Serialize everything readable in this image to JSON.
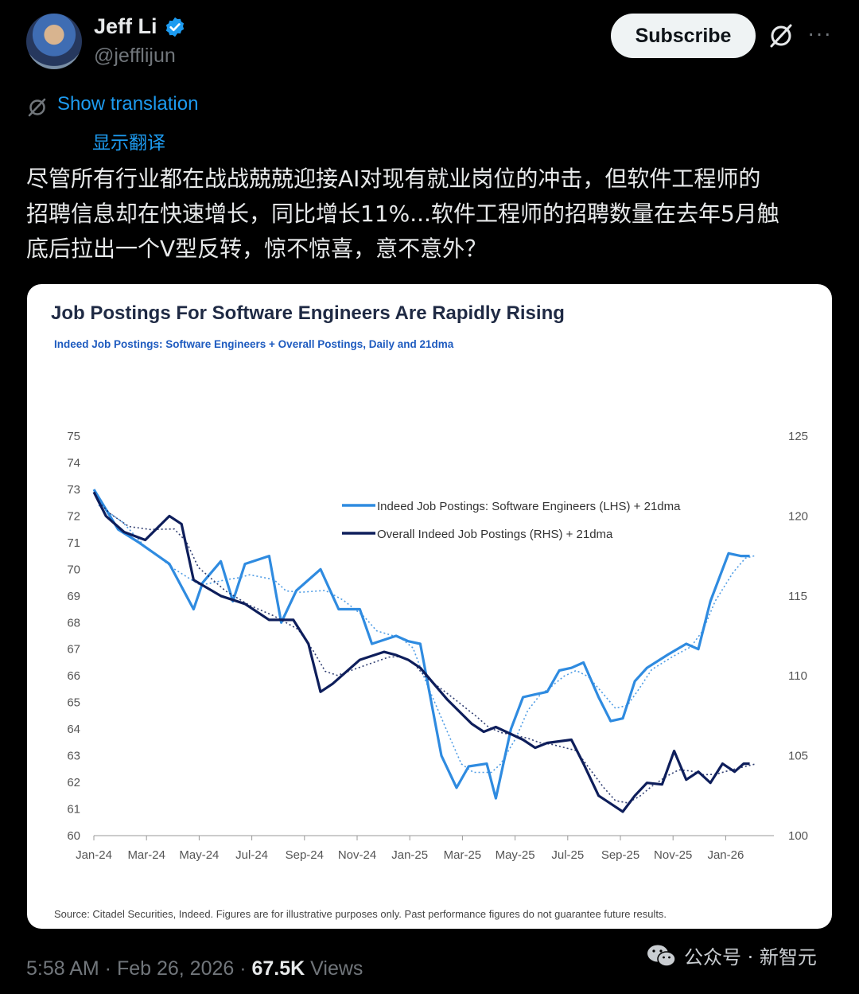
{
  "author": {
    "name": "Jeff Li",
    "handle": "@jefflijun"
  },
  "actions": {
    "subscribe_label": "Subscribe"
  },
  "translation": {
    "link": "Show translation",
    "translated_label": "显示翻译"
  },
  "tweet": {
    "text": "尽管所有行业都在战战兢兢迎接AI对现有就业岗位的冲击，但软件工程师的\n招聘信息却在快速增长，同比增长11%...软件工程师的招聘数量在去年5月触\n底后拉出一个V型反转，惊不惊喜，意不意外？"
  },
  "chart_data": {
    "type": "line",
    "title": "Job Postings For Software Engineers Are Rapidly Rising",
    "subtitle": "Indeed Job Postings: Software Engineers + Overall Postings, Daily and 21dma",
    "source": "Source: Citadel Securities, Indeed. Figures are for illustrative purposes only. Past performance figures do not guarantee future results.",
    "x_tick_labels": [
      "Jan-24",
      "Mar-24",
      "May-24",
      "Jul-24",
      "Sep-24",
      "Nov-24",
      "Jan-25",
      "Mar-25",
      "May-25",
      "Jul-25",
      "Sep-25",
      "Nov-25",
      "Jan-26"
    ],
    "y_left_ticks": [
      60,
      61,
      62,
      63,
      64,
      65,
      66,
      67,
      68,
      69,
      70,
      71,
      72,
      73,
      74,
      75
    ],
    "y_right_ticks": [
      100,
      105,
      110,
      115,
      120,
      125
    ],
    "ylim_left": [
      60,
      75
    ],
    "ylim_right": [
      100,
      125
    ],
    "xlim": [
      "2024-01",
      "2026-02"
    ],
    "legend": {
      "placement": "top-center",
      "entries": [
        "Indeed Job Postings: Software Engineers (LHS) + 21dma",
        "Overall Indeed Job Postings (RHS) + 21dma"
      ]
    },
    "colors": {
      "software": "#2f8be0",
      "overall": "#0e1e5b",
      "title": "#1f2a44",
      "subtitle": "#1e5bbf"
    },
    "series": [
      {
        "name": "Indeed Job Postings: Software Engineers (LHS) + 21dma",
        "axis": "left",
        "x": [
          2024.0,
          2024.08,
          2024.15,
          2024.25,
          2024.33,
          2024.36,
          2024.42,
          2024.46,
          2024.5,
          2024.58,
          2024.62,
          2024.67,
          2024.75,
          2024.81,
          2024.88,
          2024.92,
          2025.0,
          2025.04,
          2025.08,
          2025.15,
          2025.2,
          2025.24,
          2025.3,
          2025.33,
          2025.38,
          2025.42,
          2025.46,
          2025.5,
          2025.54,
          2025.58,
          2025.62,
          2025.67,
          2025.71,
          2025.75,
          2025.79,
          2025.83,
          2025.9,
          2025.96,
          2026.0,
          2026.04,
          2026.1,
          2026.14,
          2026.17
        ],
        "y": [
          73.0,
          71.5,
          71.0,
          70.2,
          68.5,
          69.5,
          70.3,
          68.8,
          70.2,
          70.5,
          68.0,
          69.2,
          70.0,
          68.5,
          68.5,
          67.2,
          67.5,
          67.3,
          67.2,
          63.0,
          61.8,
          62.6,
          62.7,
          61.4,
          64.0,
          65.2,
          65.3,
          65.4,
          66.2,
          66.3,
          66.5,
          65.2,
          64.3,
          64.4,
          65.8,
          66.3,
          66.8,
          67.2,
          67.0,
          68.8,
          70.6,
          70.5,
          70.5
        ]
      },
      {
        "name": "Overall Indeed Job Postings (RHS) + 21dma",
        "axis": "right",
        "x": [
          2024.0,
          2024.04,
          2024.1,
          2024.17,
          2024.25,
          2024.29,
          2024.33,
          2024.42,
          2024.5,
          2024.58,
          2024.66,
          2024.71,
          2024.75,
          2024.79,
          2024.88,
          2024.96,
          2025.0,
          2025.04,
          2025.08,
          2025.17,
          2025.25,
          2025.29,
          2025.33,
          2025.42,
          2025.46,
          2025.5,
          2025.58,
          2025.62,
          2025.67,
          2025.71,
          2025.75,
          2025.79,
          2025.83,
          2025.88,
          2025.92,
          2025.96,
          2026.0,
          2026.04,
          2026.08,
          2026.12,
          2026.15,
          2026.17
        ],
        "y": [
          121.5,
          120.0,
          119.0,
          118.5,
          120.0,
          119.5,
          116.0,
          115.0,
          114.5,
          113.5,
          113.5,
          112.0,
          109.0,
          109.5,
          111.0,
          111.5,
          111.3,
          111.0,
          110.5,
          108.5,
          107.0,
          106.5,
          106.8,
          106.0,
          105.5,
          105.8,
          106.0,
          104.5,
          102.5,
          102.0,
          101.5,
          102.5,
          103.3,
          103.2,
          105.3,
          103.5,
          104.0,
          103.3,
          104.5,
          104.0,
          104.5,
          104.5
        ]
      }
    ]
  },
  "footer": {
    "time": "5:58 AM · Feb 26, 2026 · ",
    "views_count": "67.5K",
    "views_label": " Views"
  },
  "watermark": {
    "text": "公众号 · 新智元"
  }
}
